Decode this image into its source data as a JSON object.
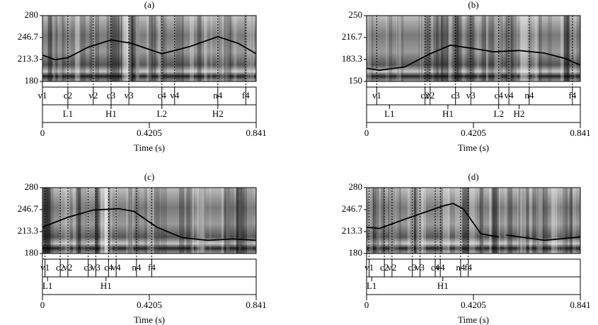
{
  "chart_data": [
    {
      "type": "line",
      "title": "(a)",
      "xlabel": "Time (s)",
      "xlim": [
        0,
        0.841
      ],
      "xticks": [
        0,
        0.4205,
        0.841
      ],
      "ylim": [
        180,
        280
      ],
      "yticks": [
        180,
        213.3,
        246.7,
        280
      ],
      "x": [
        0,
        0.05,
        0.1,
        0.18,
        0.27,
        0.35,
        0.47,
        0.58,
        0.69,
        0.77,
        0.841
      ],
      "series": [
        {
          "color": "#000000",
          "values": [
            220,
            213,
            216,
            232,
            243,
            238,
            222,
            233,
            248,
            238,
            222
          ]
        }
      ],
      "tier1": {
        "labels": [
          "v1",
          "c2",
          "v2",
          "c3",
          "v3",
          "c4",
          "v4",
          "n4",
          "f4"
        ],
        "x": [
          0,
          0.1,
          0.2,
          0.27,
          0.34,
          0.47,
          0.52,
          0.69,
          0.8
        ]
      },
      "tier2": {
        "labels": [
          "L1",
          "H1",
          "L2",
          "H2"
        ],
        "x": [
          0.1,
          0.27,
          0.47,
          0.69
        ]
      }
    },
    {
      "type": "line",
      "title": "(b)",
      "xlabel": "Time (s)",
      "xlim": [
        0,
        0.841
      ],
      "xticks": [
        0,
        0.4205,
        0.841
      ],
      "ylim": [
        150,
        250
      ],
      "yticks": [
        150,
        183.3,
        216.7,
        250
      ],
      "x": [
        0,
        0.05,
        0.15,
        0.25,
        0.33,
        0.42,
        0.5,
        0.6,
        0.7,
        0.78,
        0.841
      ],
      "series": [
        {
          "color": "#000000",
          "values": [
            170,
            167,
            172,
            192,
            205,
            200,
            195,
            197,
            193,
            185,
            175
          ]
        }
      ],
      "tier1": {
        "labels": [
          "v1",
          "c2",
          "v2",
          "c3",
          "v3",
          "c4",
          "v4",
          "n4",
          "f4"
        ],
        "x": [
          0.04,
          0.23,
          0.25,
          0.35,
          0.41,
          0.52,
          0.56,
          0.64,
          0.81
        ]
      },
      "tier2": {
        "labels": [
          "L1",
          "H1",
          "L2",
          "H2"
        ],
        "x": [
          0.09,
          0.32,
          0.52,
          0.6
        ]
      }
    },
    {
      "type": "line",
      "title": "(c)",
      "xlabel": "Time (s)",
      "xlim": [
        0,
        0.841
      ],
      "xticks": [
        0,
        0.4205,
        0.841
      ],
      "ylim": [
        180,
        280
      ],
      "yticks": [
        180,
        213.3,
        246.7,
        280
      ],
      "x": [
        0,
        0.1,
        0.2,
        0.3,
        0.36,
        0.45,
        0.55,
        0.65,
        0.75,
        0.841
      ],
      "series": [
        {
          "color": "#000000",
          "values": [
            220,
            235,
            246,
            248,
            244,
            220,
            204,
            200,
            202,
            200
          ]
        }
      ],
      "tier1": {
        "labels": [
          "v1",
          "c2",
          "v2",
          "c3",
          "v3",
          "c4",
          "v4",
          "n4",
          "f4"
        ],
        "x": [
          0.01,
          0.07,
          0.1,
          0.18,
          0.21,
          0.26,
          0.29,
          0.37,
          0.43
        ]
      },
      "tier2": {
        "labels": [
          "L1",
          "H1"
        ],
        "x": [
          0.02,
          0.25
        ]
      }
    },
    {
      "type": "line",
      "title": "(d)",
      "xlabel": "Time (s)",
      "xlim": [
        0,
        0.841
      ],
      "xticks": [
        0,
        0.4205,
        0.841
      ],
      "ylim": [
        180,
        280
      ],
      "yticks": [
        180,
        213.3,
        246.7,
        280
      ],
      "x": [
        0,
        0.05,
        0.15,
        0.3,
        0.34,
        0.38,
        0.45,
        0.52,
        0.535,
        0.55,
        0.7,
        0.841
      ],
      "series": [
        {
          "color": "#000000",
          "values": [
            220,
            218,
            232,
            252,
            256,
            248,
            210,
            205,
            null,
            208,
            200,
            205
          ]
        }
      ],
      "tier1": {
        "labels": [
          "v1",
          "c2",
          "v2",
          "c3",
          "v3",
          "c4",
          "v4",
          "n4",
          "f4"
        ],
        "x": [
          0.01,
          0.07,
          0.1,
          0.18,
          0.21,
          0.27,
          0.29,
          0.37,
          0.4
        ]
      },
      "tier2": {
        "labels": [
          "L1",
          "H1"
        ],
        "x": [
          0.02,
          0.3
        ]
      }
    }
  ]
}
